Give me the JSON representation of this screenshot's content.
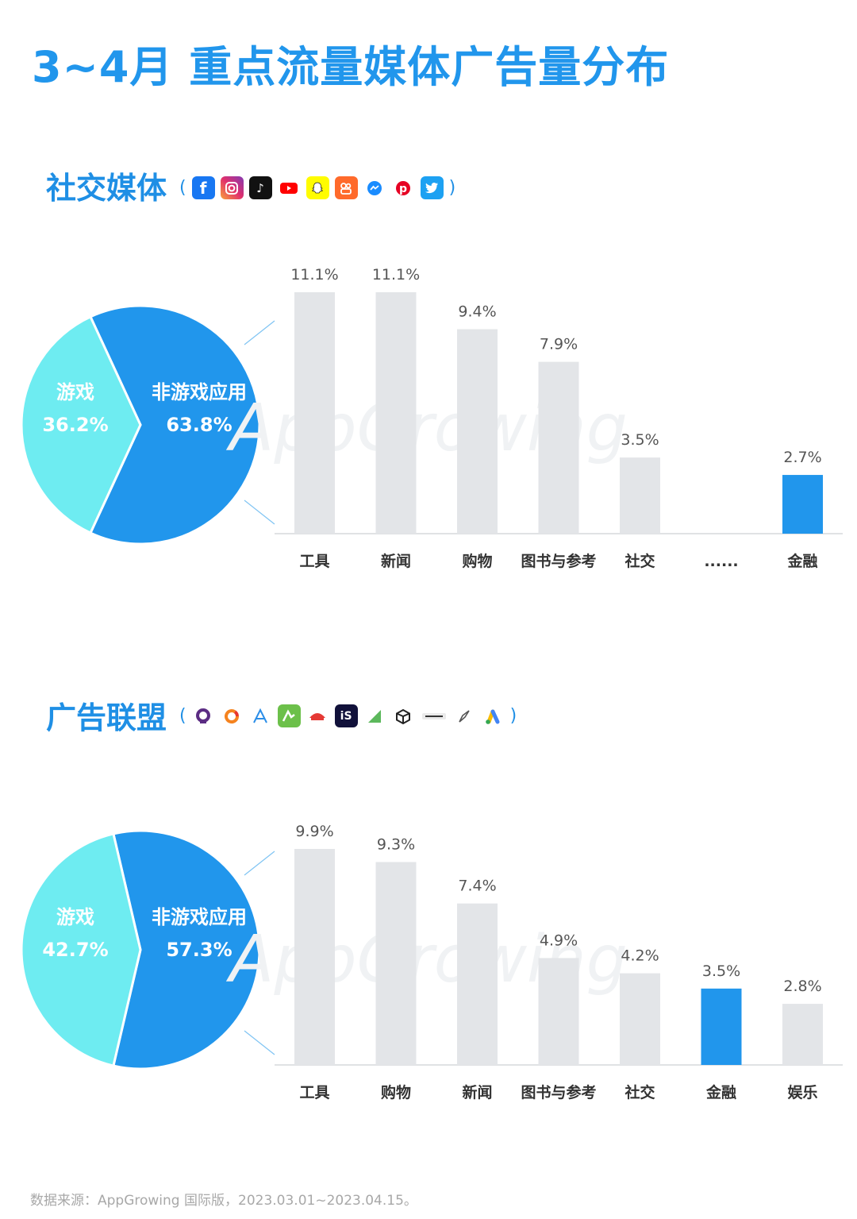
{
  "title": "3~4月 重点流量媒体广告量分布",
  "source_note": "数据来源：AppGrowing 国际版，2023.03.01~2023.04.15。",
  "watermark": "AppGrowing",
  "colors": {
    "accent": "#2196ec",
    "pie_game": "#6eecf1",
    "bar_gray": "#e3e5e8",
    "bar_highlight": "#2196ec"
  },
  "sections": [
    {
      "title": "社交媒体",
      "paren_open": "(",
      "paren_close": ")",
      "icons": [
        "facebook-icon",
        "instagram-icon",
        "tiktok-icon",
        "youtube-icon",
        "snapchat-icon",
        "kuaishou-icon",
        "messenger-icon",
        "pinterest-icon",
        "twitter-icon"
      ]
    },
    {
      "title": "广告联盟",
      "paren_open": "(",
      "paren_close": ")",
      "icons": [
        "admob-ring-icon",
        "applovin-ring-icon",
        "applovin-a-icon",
        "mintegral-icon",
        "pangle-icon",
        "ironsource-icon",
        "chartboost-icon",
        "unity-icon",
        "vungle-icon",
        "inmobi-icon",
        "google-ads-icon"
      ]
    }
  ],
  "chart_data": [
    {
      "type": "pie",
      "slices": [
        {
          "label": "游戏",
          "value": 36.2,
          "display": "36.2%",
          "color": "#6eecf1"
        },
        {
          "label": "非游戏应用",
          "value": 63.8,
          "display": "63.8%",
          "color": "#2196ec"
        }
      ]
    },
    {
      "type": "bar",
      "categories": [
        "工具",
        "新闻",
        "购物",
        "图书与参考",
        "社交",
        "......",
        "金融"
      ],
      "values": [
        11.1,
        11.1,
        9.4,
        7.9,
        3.5,
        null,
        2.7
      ],
      "labels": [
        "11.1%",
        "11.1%",
        "9.4%",
        "7.9%",
        "3.5%",
        "",
        "2.7%"
      ],
      "highlight": "金融",
      "ylim": [
        0,
        11.1
      ]
    },
    {
      "type": "pie",
      "slices": [
        {
          "label": "游戏",
          "value": 42.7,
          "display": "42.7%",
          "color": "#6eecf1"
        },
        {
          "label": "非游戏应用",
          "value": 57.3,
          "display": "57.3%",
          "color": "#2196ec"
        }
      ]
    },
    {
      "type": "bar",
      "categories": [
        "工具",
        "购物",
        "新闻",
        "图书与参考",
        "社交",
        "金融",
        "娱乐"
      ],
      "values": [
        9.9,
        9.3,
        7.4,
        4.9,
        4.2,
        3.5,
        2.8
      ],
      "labels": [
        "9.9%",
        "9.3%",
        "7.4%",
        "4.9%",
        "4.2%",
        "3.5%",
        "2.8%"
      ],
      "highlight": "金融",
      "ylim": [
        0,
        9.9
      ]
    }
  ]
}
